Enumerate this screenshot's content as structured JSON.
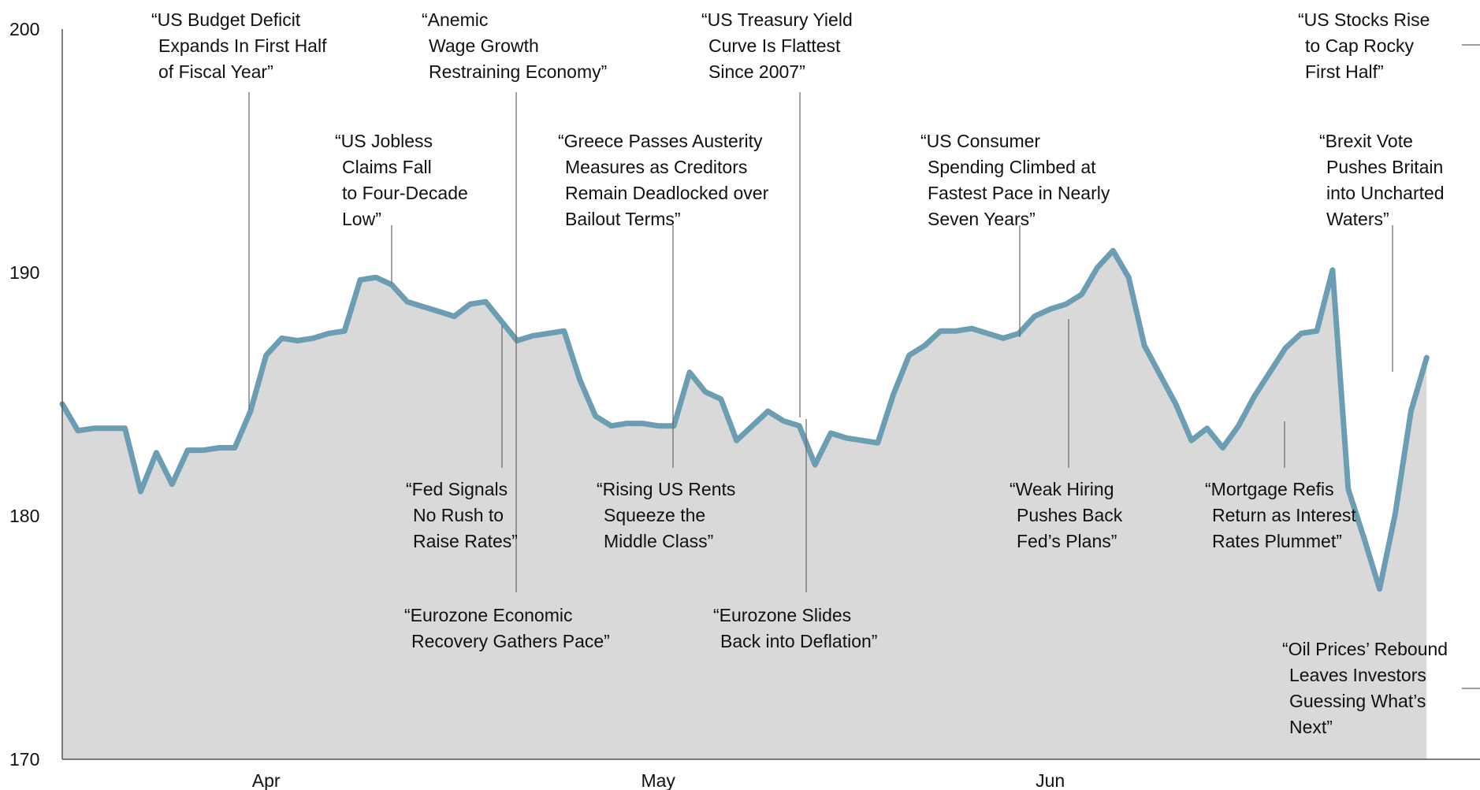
{
  "chart_data": {
    "type": "area",
    "ylim": [
      170,
      200
    ],
    "y_ticks": [
      "170",
      "180",
      "190",
      "200"
    ],
    "x_tick_labels": [
      "Apr",
      "May",
      "Jun"
    ],
    "colors": {
      "line": "#6b9db3",
      "fill": "#d9d9d9",
      "axis": "#555555"
    },
    "series": [
      {
        "values": [
          184.6,
          183.5,
          183.6,
          183.6,
          183.6,
          181.0,
          182.6,
          181.3,
          182.7,
          182.7,
          182.8,
          182.8,
          184.3,
          186.6,
          187.3,
          187.2,
          187.3,
          187.5,
          187.6,
          189.7,
          189.8,
          189.5,
          188.8,
          188.6,
          188.4,
          188.2,
          188.7,
          188.8,
          188.0,
          187.2,
          187.4,
          187.5,
          187.6,
          185.6,
          184.1,
          183.7,
          183.8,
          183.8,
          183.7,
          183.7,
          185.9,
          185.1,
          184.8,
          183.1,
          183.7,
          184.3,
          183.9,
          183.7,
          182.1,
          183.4,
          183.2,
          183.1,
          183.0,
          185.0,
          186.6,
          187.0,
          187.6,
          187.6,
          187.7,
          187.5,
          187.3,
          187.5,
          188.2,
          188.5,
          188.7,
          189.1,
          190.2,
          190.9,
          189.8,
          187.0,
          185.8,
          184.6,
          183.1,
          183.6,
          182.8,
          183.7,
          184.9,
          185.9,
          186.9,
          187.5,
          187.6,
          190.1,
          181.1,
          179.1,
          177.0,
          180.1,
          184.3,
          186.5
        ]
      }
    ]
  },
  "annotations": [
    {
      "lines": [
        "“US Budget Deficit",
        "Expands In First Half",
        "of Fiscal Year”"
      ],
      "index": 12
    },
    {
      "lines": [
        "“Anemic",
        "Wage Growth",
        "Restraining Economy”"
      ],
      "index": 29
    },
    {
      "lines": [
        "“US Treasury Yield",
        "Curve Is Flattest",
        "Since 2007”"
      ],
      "index": 46
    },
    {
      "lines": [
        "“US Stocks Rise",
        "to Cap Rocky",
        "First Half”"
      ],
      "index": 87
    },
    {
      "lines": [
        "“US Jobless",
        "Claims Fall",
        "to Four-Decade",
        "Low”"
      ],
      "index": 21
    },
    {
      "lines": [
        "“Greece Passes Austerity",
        "Measures as Creditors",
        "Remain Deadlocked over",
        "Bailout Terms”"
      ],
      "index": 39
    },
    {
      "lines": [
        "“US Consumer",
        "Spending Climbed at",
        "Fastest Pace in Nearly",
        "Seven Years”"
      ],
      "index": 61
    },
    {
      "lines": [
        "“Brexit Vote",
        "Pushes Britain",
        "into Uncharted",
        "Waters”"
      ],
      "index": 82
    },
    {
      "lines": [
        "“Fed Signals",
        "No Rush to",
        "Raise Rates”"
      ],
      "index": 28
    },
    {
      "lines": [
        "“Rising US Rents",
        "Squeeze the",
        "Middle Class”"
      ],
      "index": 39
    },
    {
      "lines": [
        "“Weak Hiring",
        "Pushes Back",
        "Fed’s Plans”"
      ],
      "index": 64
    },
    {
      "lines": [
        "“Mortgage Refis",
        "Return as Interest",
        "Rates Plummet”"
      ],
      "index": 75
    },
    {
      "lines": [
        "“Eurozone Economic",
        "Recovery Gathers Pace”"
      ],
      "index": 29
    },
    {
      "lines": [
        "“Eurozone Slides",
        "Back into Deflation”"
      ],
      "index": 47
    },
    {
      "lines": [
        "“Oil Prices’ Rebound",
        "Leaves Investors",
        "Guessing What’s",
        "Next”"
      ],
      "index": 88
    }
  ]
}
